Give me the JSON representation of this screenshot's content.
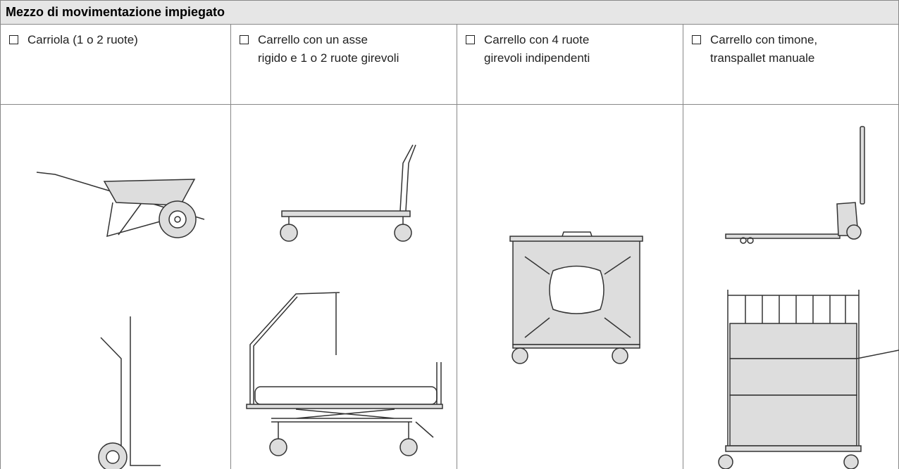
{
  "header": {
    "title": "Mezzo di movimentazione impiegato"
  },
  "columns": [
    {
      "lines": [
        "Carriola (1 o 2 ruote)"
      ]
    },
    {
      "lines": [
        "Carrello con un asse",
        "rigido e 1 o 2 ruote girevoli"
      ]
    },
    {
      "lines": [
        "Carrello con 4 ruote",
        "girevoli indipendenti"
      ]
    },
    {
      "lines": [
        "Carrello con timone,",
        "transpallet manuale"
      ]
    }
  ]
}
